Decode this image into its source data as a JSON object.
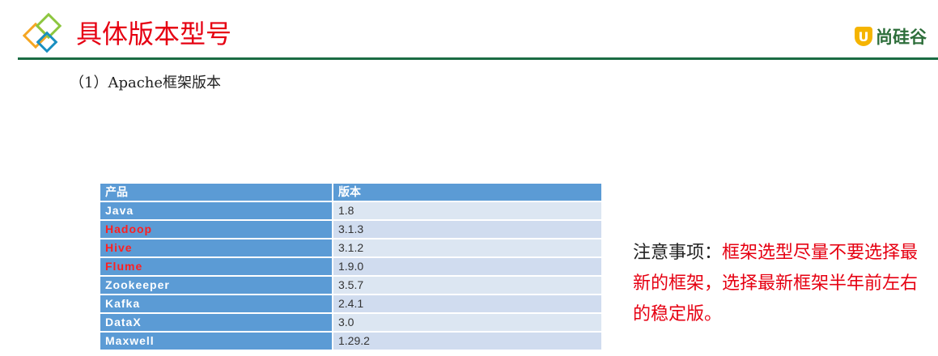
{
  "header": {
    "title": "具体版本型号",
    "brand": "尚硅谷",
    "brand_mark": "U",
    "accent_color": "#e60012",
    "divider_color": "#1a6b43"
  },
  "subtitle": "（1）Apache框架版本",
  "table": {
    "headers": [
      "产品",
      "版本"
    ],
    "rows": [
      {
        "product": "Java",
        "version": "1.8",
        "highlight": false
      },
      {
        "product": "Hadoop",
        "version": "3.1.3",
        "highlight": true
      },
      {
        "product": "Hive",
        "version": "3.1.2",
        "highlight": true
      },
      {
        "product": "Flume",
        "version": "1.9.0",
        "highlight": true
      },
      {
        "product": "Zookeeper",
        "version": "3.5.7",
        "highlight": false
      },
      {
        "product": "Kafka",
        "version": "2.4.1",
        "highlight": false
      },
      {
        "product": "DataX",
        "version": "3.0",
        "highlight": false
      },
      {
        "product": "Maxwell",
        "version": "1.29.2",
        "highlight": false
      }
    ]
  },
  "note": {
    "lead": "注意事项：",
    "body": "框架选型尽量不要选择最新的框架，选择最新框架半年前左右的稳定版。"
  }
}
